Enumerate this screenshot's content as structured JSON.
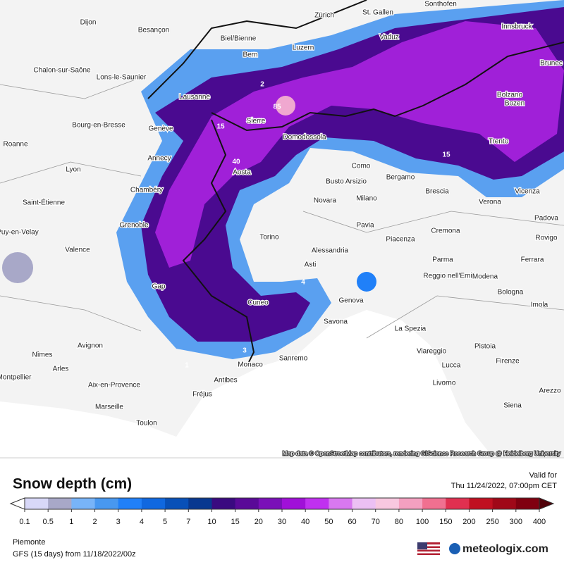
{
  "header": {
    "title": "Snow depth (cm)",
    "valid_label": "Valid for",
    "valid_time": "Thu 11/24/2022, 07:00pm CET"
  },
  "legend": {
    "labels": [
      0.1,
      0.5,
      1,
      2,
      3,
      4,
      5,
      7,
      10,
      15,
      20,
      30,
      40,
      50,
      60,
      70,
      80,
      100,
      150,
      200,
      250,
      300,
      400
    ],
    "colors": [
      "#d8d8f8",
      "#a8a8c8",
      "#78b4f8",
      "#4898f0",
      "#2080f8",
      "#1068e0",
      "#0850b8",
      "#083890",
      "#3a0a80",
      "#5a0a98",
      "#7a10b8",
      "#a010d8",
      "#c030f0",
      "#d878f0",
      "#ecc0f4",
      "#f8c8e0",
      "#f4a0c0",
      "#f07090",
      "#e03050",
      "#c01020",
      "#a00818",
      "#800010"
    ]
  },
  "footer": {
    "region": "Piemonte",
    "model": "GFS (15 days) from 11/18/2022/00z",
    "brand": "meteologix.com"
  },
  "map": {
    "attribution": "Map data © OpenStreetMap contributors, rendering GIScience Research Group @ Heidelberg University",
    "cities": [
      "Dijon",
      "Besançon",
      "Biel/Bienne",
      "Bern",
      "Zürich",
      "St. Gallen",
      "Sonthofen",
      "Innsbruck",
      "Vaduz",
      "Luzern",
      "Chalon-sur-Saône",
      "Lons-le-Saunier",
      "Lausanne",
      "Genève",
      "Sierre",
      "Domodossola",
      "Bourg-en-Bresse",
      "Roanne",
      "Annecy",
      "Lyon",
      "Aosta",
      "Como",
      "Busto Arsizio",
      "Bergamo",
      "Brescia",
      "Trento",
      "Bolzano",
      "Verona",
      "Vicenza",
      "Padova",
      "Rovigo",
      "Chambéry",
      "Saint-Étienne",
      "Novara",
      "Milano",
      "Pavia",
      "Piacenza",
      "Cremona",
      "Grenoble",
      "Le Puy-en-Velay",
      "Valence",
      "Torino",
      "Alessandria",
      "Asti",
      "Parma",
      "Ferrara",
      "Reggio nell'Emilia",
      "Modena",
      "Bologna",
      "Imola",
      "Gap",
      "Cuneo",
      "Genova",
      "Savona",
      "La Spezia",
      "Viareggio",
      "Pistoia",
      "Avignon",
      "Nîmes",
      "Arles",
      "Monaco",
      "Sanremo",
      "Lucca",
      "Firenze",
      "Montpellier",
      "Aix-en-Provence",
      "Antibes",
      "Fréjus",
      "Livorno",
      "Arezzo",
      "Marseille",
      "Siena",
      "Toulon",
      "Brunec",
      "Bozen"
    ],
    "contour_labels": [
      85,
      40,
      15,
      2,
      4,
      3,
      1,
      15
    ]
  }
}
